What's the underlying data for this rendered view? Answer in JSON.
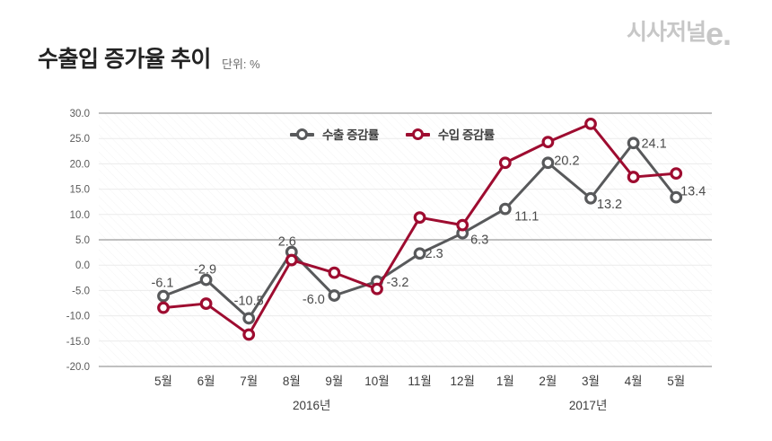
{
  "header": {
    "title": "수출입 증가율 추이",
    "unit_label": "단위: %",
    "logo_korean": "시사저널",
    "logo_accent": "e."
  },
  "legend": {
    "items": [
      {
        "label": "수출 증감률"
      },
      {
        "label": "수입 증감률"
      }
    ]
  },
  "chart_data": {
    "type": "line",
    "title": "수출입 증가율 추이",
    "unit": "%",
    "categories": [
      "5월",
      "6월",
      "7월",
      "8월",
      "9월",
      "10월",
      "11월",
      "12월",
      "1월",
      "2월",
      "3월",
      "4월",
      "5월"
    ],
    "year_labels": [
      {
        "text": "2016년",
        "at_index": 3.47
      },
      {
        "text": "2017년",
        "at_index": 9.94
      }
    ],
    "series": [
      {
        "key": "export",
        "name": "수출 증감률",
        "color": "#58595B",
        "values": [
          -6.1,
          -2.9,
          -10.5,
          2.6,
          -6.0,
          -3.2,
          2.3,
          6.3,
          11.1,
          20.2,
          13.2,
          24.1,
          13.4
        ],
        "show_labels": true,
        "label_offsets": [
          [
            -1,
            -15
          ],
          [
            -1,
            -12
          ],
          [
            0,
            -20
          ],
          [
            -5,
            -12
          ],
          [
            -23,
            4
          ],
          [
            23,
            1
          ],
          [
            16,
            0
          ],
          [
            19,
            7
          ],
          [
            24,
            8
          ],
          [
            21,
            -3
          ],
          [
            21,
            6
          ],
          [
            23,
            0
          ],
          [
            19,
            -7
          ]
        ]
      },
      {
        "key": "import",
        "name": "수입 증감률",
        "color": "#9E0C30",
        "values": [
          -8.4,
          -7.6,
          -13.7,
          1.0,
          -1.5,
          -4.7,
          9.4,
          7.9,
          20.2,
          24.3,
          27.9,
          17.4,
          18.1
        ],
        "show_labels": false,
        "label_offsets": []
      }
    ],
    "ylim": [
      -20,
      30
    ],
    "ytick_step": 5,
    "ytick_format_decimals": 1,
    "emphasized_gridlines": [
      30,
      5,
      -20
    ],
    "grid": "horizontal",
    "legend_position": "top-center",
    "colors": {
      "grid_light": "#ebebeb",
      "grid_dark": "#ababab",
      "axis_text": "#5a5a5a",
      "month_text": "#3c3c3c",
      "data_label_text": "#4b4b4b"
    }
  }
}
